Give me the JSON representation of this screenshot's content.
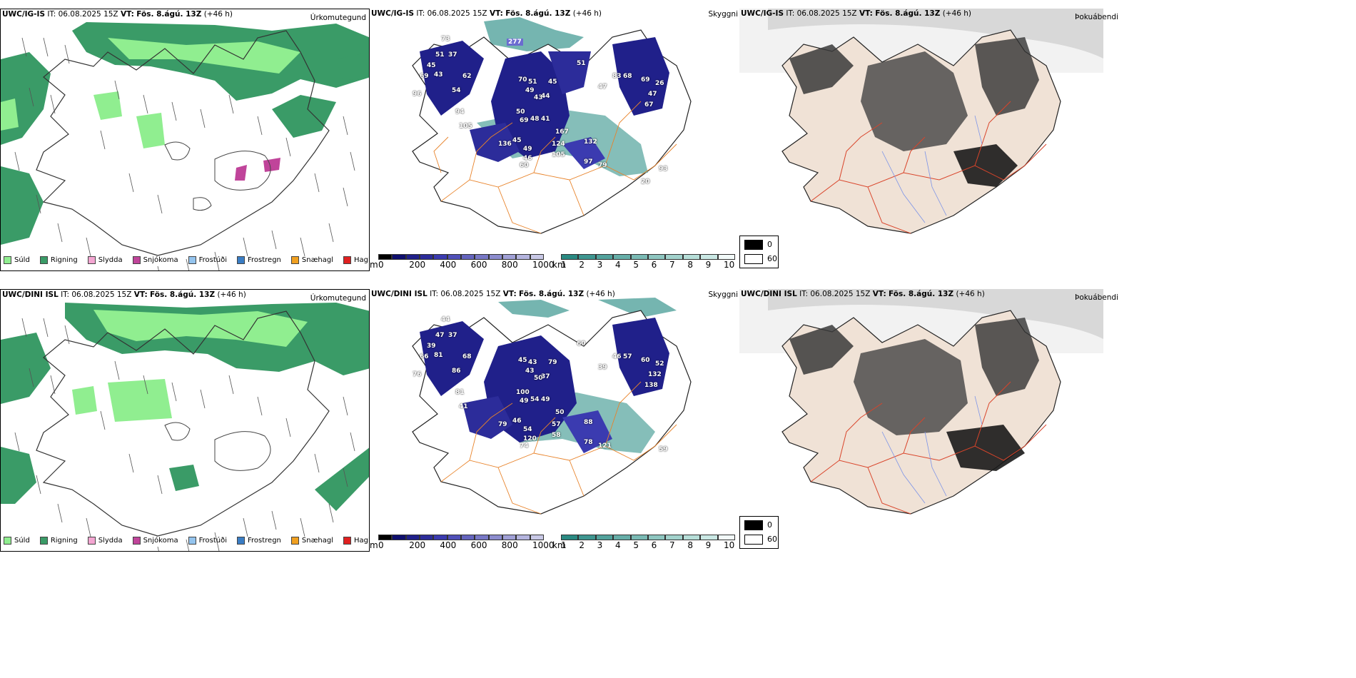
{
  "rows": [
    {
      "model": "UWC/IG-IS",
      "it_label": "IT:",
      "it_value": "06.08.2025 15Z",
      "vt_label": "VT:",
      "vt_value": "Fös. 8.ágú. 13Z",
      "lead": "(+46 h)",
      "precip_title": "Úrkomutegund",
      "cloud_title": "Skyggni",
      "fog_title": "Þokuábendi"
    },
    {
      "model": "UWC/DINI ISL",
      "it_label": "IT:",
      "it_value": "06.08.2025 15Z",
      "vt_label": "VT:",
      "vt_value": "Fös. 8.ágú. 13Z",
      "lead": "(+46 h)",
      "precip_title": "Úrkomutegund",
      "cloud_title": "Skyggni",
      "fog_title": "Þokuábendi"
    }
  ],
  "precip_legend": [
    {
      "label": "Súld",
      "color": "#90ee90"
    },
    {
      "label": "Rigning",
      "color": "#3a9b67"
    },
    {
      "label": "Slydda",
      "color": "#f4a6d2"
    },
    {
      "label": "Snjókoma",
      "color": "#c0449a"
    },
    {
      "label": "Frostúði",
      "color": "#94c4ee"
    },
    {
      "label": "Frostregn",
      "color": "#3a7dc4"
    },
    {
      "label": "Snæhagl",
      "color": "#f0a020"
    },
    {
      "label": "Haglél",
      "color": "#e02020"
    }
  ],
  "ceiling_bar": {
    "unit": "m",
    "ticks": [
      "0",
      "200",
      "400",
      "600",
      "800",
      "1000"
    ],
    "colors": [
      "#000000",
      "#0f0f6e",
      "#20208a",
      "#2c2c9a",
      "#3b3bb0",
      "#5050b8",
      "#6464be",
      "#7878c6",
      "#8c8cce",
      "#a0a0d6",
      "#b4b4de",
      "#c8c8e6"
    ]
  },
  "visibility_bar": {
    "unit": "km",
    "ticks": [
      "1",
      "2",
      "3",
      "4",
      "5",
      "6",
      "7",
      "8",
      "9",
      "10"
    ],
    "colors": [
      "#2a8a82",
      "#3e9690",
      "#52a29c",
      "#66aea8",
      "#7abab4",
      "#8ec6c0",
      "#a2d2cc",
      "#b6ded8",
      "#cae8e4",
      "#f2faf9"
    ]
  },
  "fog_legend": [
    {
      "label": "0",
      "color": "#000000"
    },
    {
      "label": "60",
      "color": "#ffffff"
    }
  ],
  "ceiling_values": [
    [
      "73",
      "51",
      "37",
      "45",
      "69",
      "43",
      "62",
      "54",
      "96",
      "94",
      "105",
      "70",
      "51",
      "49",
      "43",
      "44",
      "45",
      "50",
      "69",
      "48",
      "41",
      "51",
      "83",
      "47",
      "68",
      "69",
      "26",
      "47",
      "67",
      "45",
      "136",
      "49",
      "46",
      "60",
      "167",
      "124",
      "105",
      "132",
      "97",
      "79",
      "93",
      "20"
    ],
    [
      "44",
      "47",
      "37",
      "39",
      "66",
      "81",
      "68",
      "86",
      "76",
      "81",
      "41",
      "45",
      "43",
      "43",
      "50",
      "37",
      "79",
      "100",
      "49",
      "54",
      "49",
      "60",
      "46",
      "39",
      "57",
      "60",
      "52",
      "132",
      "138",
      "46",
      "79",
      "54",
      "120",
      "74",
      "50",
      "57",
      "58",
      "88",
      "78",
      "121",
      "59"
    ]
  ],
  "legend_values": {
    "ice_label": "277"
  }
}
